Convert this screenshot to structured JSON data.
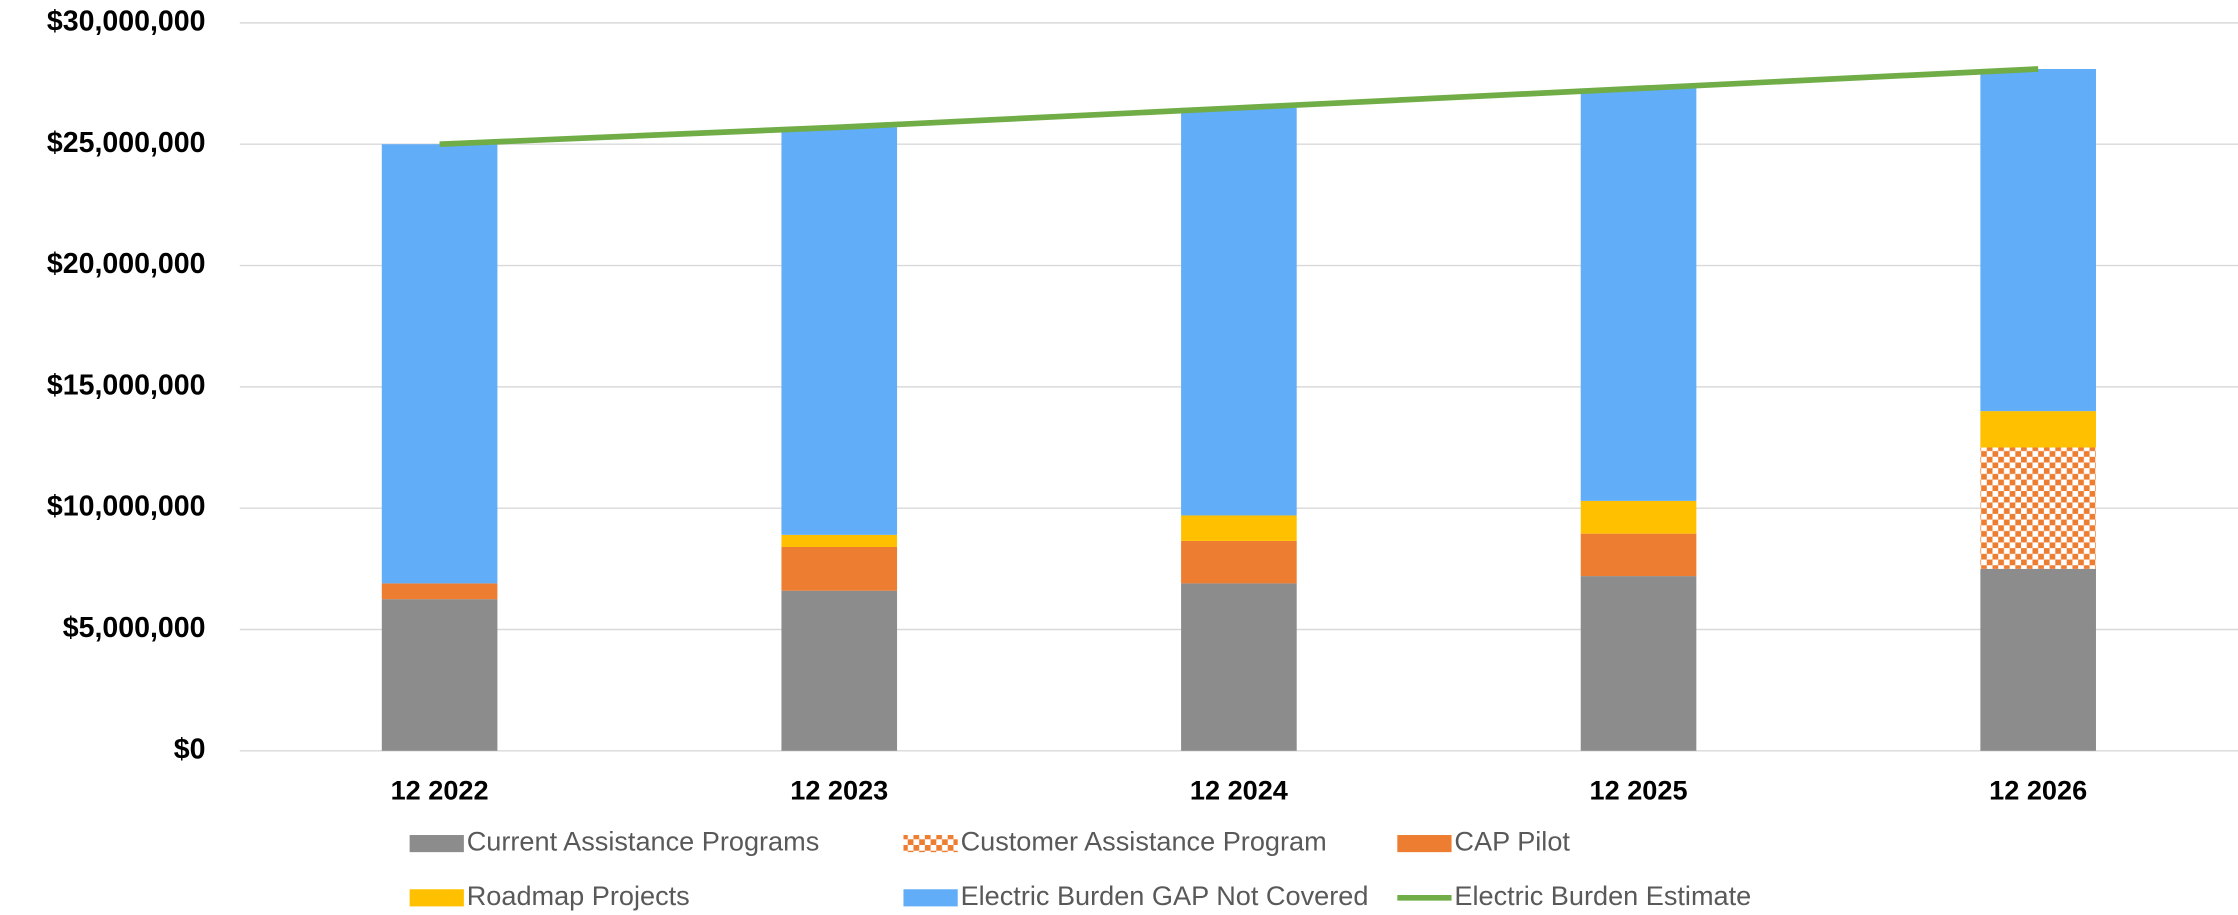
{
  "chart_data": {
    "type": "stacked-bar-line",
    "categories": [
      "12 2022",
      "12 2023",
      "12 2024",
      "12 2025",
      "12 2026"
    ],
    "series": [
      {
        "name": "Current Assistance Programs",
        "color": "#8c8c8c",
        "values": [
          6250000,
          6600000,
          6900000,
          7200000,
          7500000
        ]
      },
      {
        "name": "Customer Assistance Program",
        "color": "#ed7d31",
        "pattern": "checkered",
        "values": [
          0,
          0,
          0,
          0,
          5000000
        ]
      },
      {
        "name": "CAP Pilot",
        "color": "#ed7d31",
        "values": [
          650000,
          1800000,
          1750000,
          1750000,
          0
        ]
      },
      {
        "name": "Roadmap Projects",
        "color": "#ffc000",
        "values": [
          0,
          500000,
          1050000,
          1350000,
          1500000
        ]
      },
      {
        "name": "Electric Burden GAP Not Covered",
        "color": "#61adf7",
        "values": [
          18100000,
          16800000,
          16800000,
          17000000,
          14100000
        ]
      },
      {
        "name": "Electric Burden Estimate",
        "color": "#70ad47",
        "kind": "line",
        "values": [
          25000000,
          25700000,
          26500000,
          27300000,
          28100000
        ]
      }
    ],
    "ylim": [
      0,
      30000000
    ],
    "yticks": [
      {
        "value": 0,
        "label": "$0"
      },
      {
        "value": 5000000,
        "label": "$5,000,000"
      },
      {
        "value": 10000000,
        "label": "$10,000,000"
      },
      {
        "value": 15000000,
        "label": "$15,000,000"
      },
      {
        "value": 20000000,
        "label": "$20,000,000"
      },
      {
        "value": 25000000,
        "label": "$25,000,000"
      },
      {
        "value": 30000000,
        "label": "$30,000,000"
      }
    ],
    "grid": true
  }
}
